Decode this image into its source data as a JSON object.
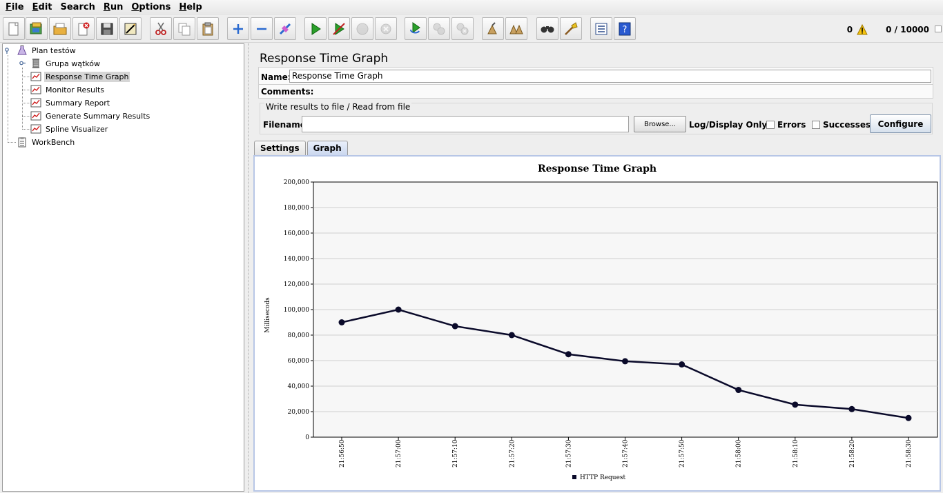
{
  "menu": {
    "items": [
      "File",
      "Edit",
      "Search",
      "Run",
      "Options",
      "Help"
    ],
    "mnemonics": [
      "F",
      "E",
      "",
      "R",
      "O",
      "H"
    ]
  },
  "toolbar": {
    "buttons": [
      {
        "name": "new-icon"
      },
      {
        "name": "templates-icon"
      },
      {
        "name": "open-icon"
      },
      {
        "name": "close-icon"
      },
      {
        "name": "save-icon"
      },
      {
        "name": "save-as-image-icon"
      },
      {
        "name": "cut-icon"
      },
      {
        "name": "copy-icon"
      },
      {
        "name": "paste-icon"
      },
      {
        "name": "expand-icon"
      },
      {
        "name": "collapse-icon"
      },
      {
        "name": "toggle-icon"
      },
      {
        "name": "start-icon"
      },
      {
        "name": "start-no-timers-icon"
      },
      {
        "name": "stop-icon"
      },
      {
        "name": "shutdown-icon"
      },
      {
        "name": "remote-start-all-icon"
      },
      {
        "name": "remote-stop-all-icon"
      },
      {
        "name": "remote-shutdown-all-icon"
      },
      {
        "name": "clear-icon"
      },
      {
        "name": "clear-all-icon"
      },
      {
        "name": "search-icon"
      },
      {
        "name": "reset-search-icon"
      },
      {
        "name": "function-helper-icon"
      },
      {
        "name": "help-icon"
      }
    ],
    "warning_count": "0",
    "threads": "0 / 10000"
  },
  "tree": {
    "plan": "Plan testów",
    "thread_group": "Grupa wątków",
    "children": [
      "Response Time Graph",
      "Monitor Results",
      "Summary Report",
      "Generate Summary Results",
      "Spline Visualizer"
    ],
    "workbench": "WorkBench",
    "selected_index": 0
  },
  "panel": {
    "title": "Response Time Graph",
    "name_label": "Name:",
    "name_value": "Response Time Graph",
    "comments_label": "Comments:",
    "file_group_title": "Write results to file / Read from file",
    "filename_label": "Filename",
    "filename_value": "",
    "browse_label": "Browse...",
    "log_display_label": "Log/Display Only:",
    "errors_label": "Errors",
    "successes_label": "Successes",
    "configure_label": "Configure",
    "tabs": [
      "Settings",
      "Graph"
    ],
    "active_tab": 1
  },
  "colors": {
    "series_line": "#0a0a2a",
    "tab_border": "#b7c6e6"
  },
  "chart_data": {
    "type": "line",
    "title": "Response Time Graph",
    "ylabel": "Millisecods",
    "xlabel": "",
    "ylim": [
      0,
      200000
    ],
    "yticks": [
      "0",
      "20,000",
      "40,000",
      "60,000",
      "80,000",
      "100,000",
      "120,000",
      "140,000",
      "160,000",
      "180,000",
      "200,000"
    ],
    "x": [
      "21:56:50",
      "21:57:00",
      "21:57:10",
      "21:57:20",
      "21:57:30",
      "21:57:40",
      "21:57:50",
      "21:58:00",
      "21:58:10",
      "21:58:20",
      "21:58:30"
    ],
    "series": [
      {
        "name": "HTTP Request",
        "values": [
          90000,
          100000,
          87000,
          80000,
          65000,
          59500,
          57000,
          37000,
          25500,
          22000,
          15000
        ]
      }
    ],
    "grid": true,
    "legend": "bottom"
  }
}
